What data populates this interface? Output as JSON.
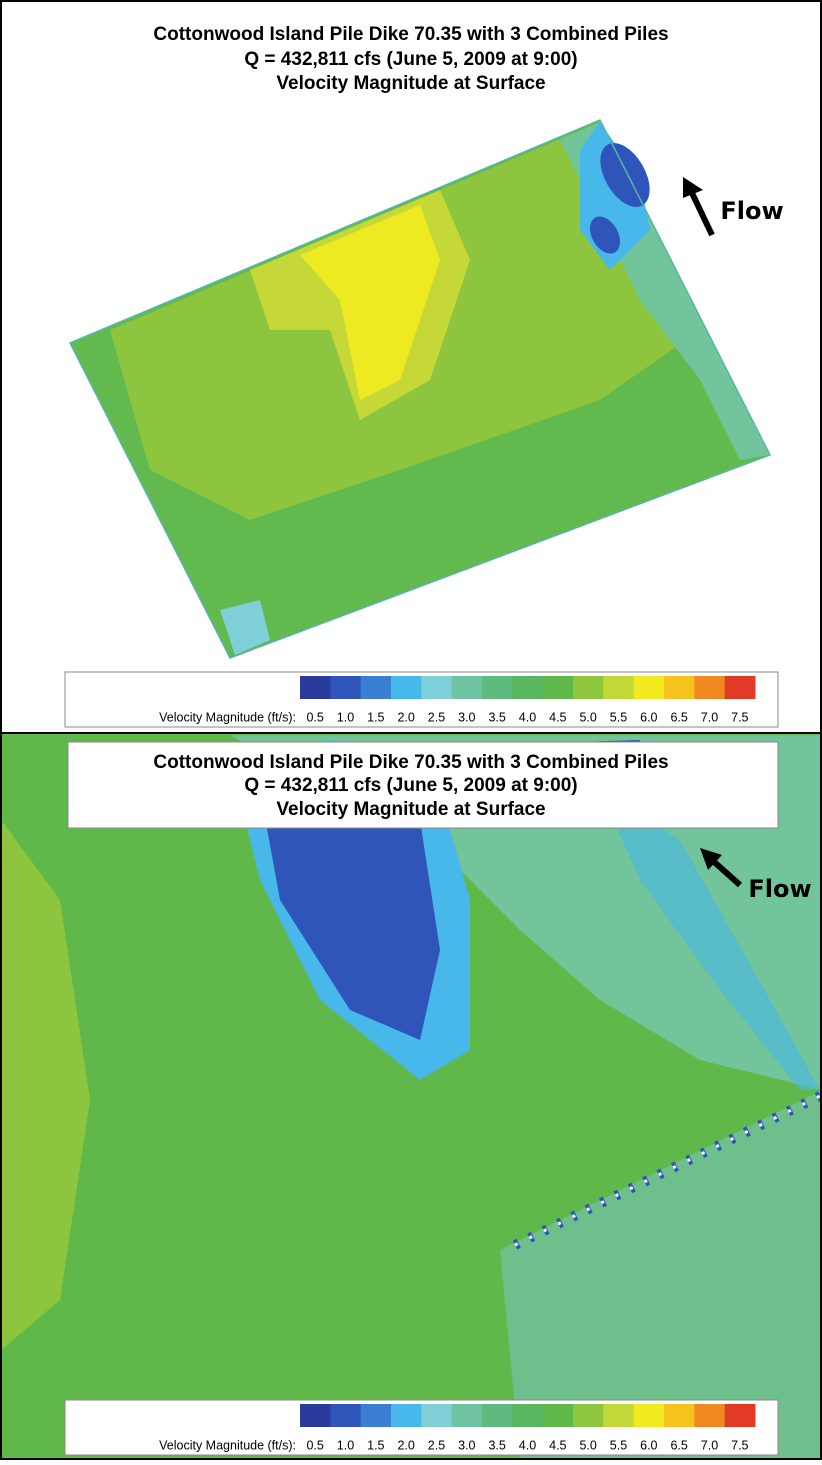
{
  "chart_data": [
    {
      "type": "contour",
      "title_lines": [
        "Cottonwood Island Pile Dike 70.35 with 3 Combined Piles",
        "Q = 432,811 cfs (June 5, 2009 at 9:00)",
        "Velocity Magnitude at Surface"
      ],
      "annotation": "Flow",
      "colorbar": {
        "label": "Velocity Magnitude (ft/s):",
        "ticks": [
          0.5,
          {
            "value": 1,
            "label": "1.0"
          },
          1.5,
          {
            "value": 2,
            "label": "2.0"
          },
          2.5,
          {
            "value": 3,
            "label": "3.0"
          },
          3.5,
          {
            "value": 4,
            "label": "4.0"
          },
          4.5,
          {
            "value": 5,
            "label": "5.0"
          },
          5.5,
          {
            "value": 6,
            "label": "6.0"
          },
          6.5,
          {
            "value": 7,
            "label": "7.0"
          },
          7.5
        ],
        "colors": [
          "#2a3b9c",
          "#2f55bb",
          "#3a7fd4",
          "#48b7ea",
          "#7fd0d8",
          "#70c4a4",
          "#5fba80",
          "#58b660",
          "#60b84a",
          "#8ec63e",
          "#c2d838",
          "#f0ea1e",
          "#f6c21c",
          "#f08a20",
          "#e23a26"
        ]
      }
    },
    {
      "type": "contour",
      "title_lines": [
        "Cottonwood Island Pile Dike 70.35 with 3 Combined Piles",
        "Q = 432,811 cfs (June 5, 2009 at 9:00)",
        "Velocity Magnitude at Surface"
      ],
      "annotation": "Flow",
      "colorbar": {
        "label": "Velocity Magnitude (ft/s):",
        "ticks": [
          0.5,
          {
            "value": 1,
            "label": "1.0"
          },
          1.5,
          {
            "value": 2,
            "label": "2.0"
          },
          2.5,
          {
            "value": 3,
            "label": "3.0"
          },
          3.5,
          {
            "value": 4,
            "label": "4.0"
          },
          4.5,
          {
            "value": 5,
            "label": "5.0"
          },
          5.5,
          {
            "value": 6,
            "label": "6.0"
          },
          6.5,
          {
            "value": 7,
            "label": "7.0"
          },
          7.5
        ],
        "colors": [
          "#2a3b9c",
          "#2f55bb",
          "#3a7fd4",
          "#48b7ea",
          "#7fd0d8",
          "#70c4a4",
          "#5fba80",
          "#58b660",
          "#60b84a",
          "#8ec63e",
          "#c2d838",
          "#f0ea1e",
          "#f6c21c",
          "#f08a20",
          "#e23a26"
        ]
      }
    }
  ]
}
